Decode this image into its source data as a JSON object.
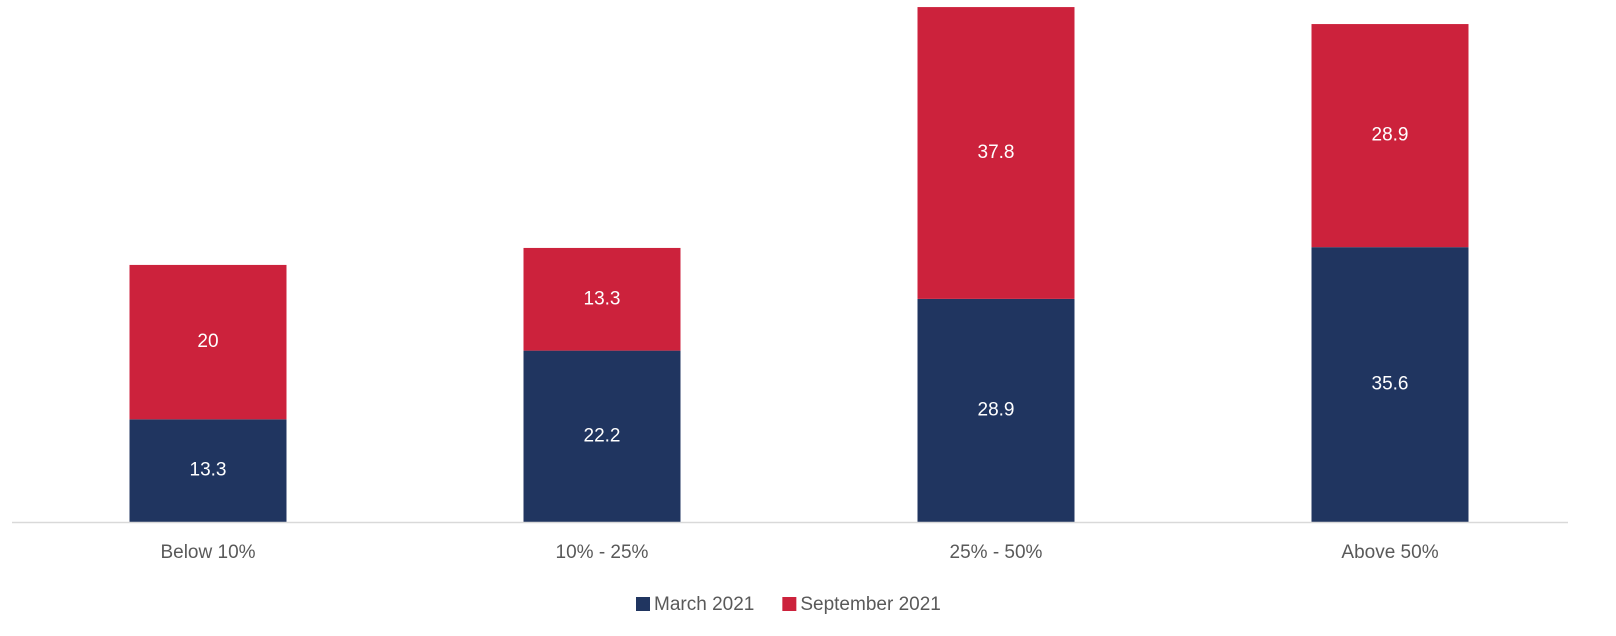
{
  "chart_data": {
    "type": "stacked_bar",
    "categories": [
      "Below 10%",
      "10% - 25%",
      "25% - 50%",
      "Above 50%"
    ],
    "series": [
      {
        "name": "March 2021",
        "color": "#203560",
        "values": [
          13.3,
          22.2,
          28.9,
          35.6
        ]
      },
      {
        "name": "September 2021",
        "color": "#cc223c",
        "values": [
          20,
          13.3,
          37.8,
          28.9
        ]
      }
    ],
    "legend": "bottom"
  }
}
